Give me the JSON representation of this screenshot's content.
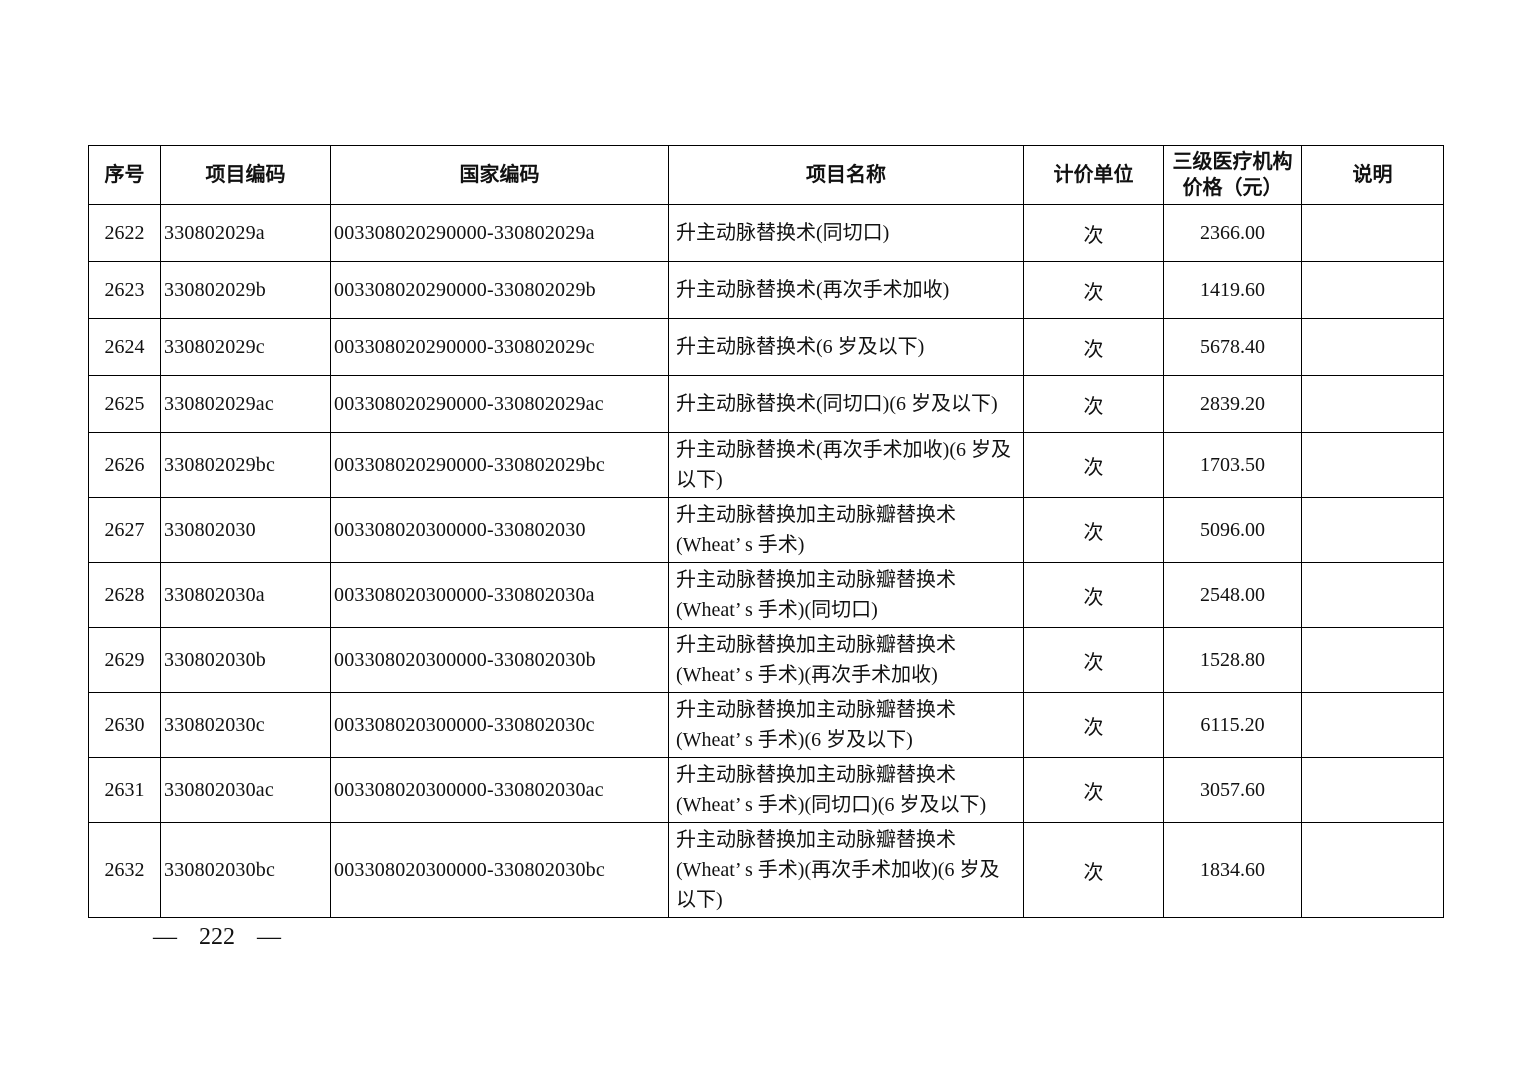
{
  "page": {
    "footer_page_number": "— 222 —"
  },
  "table": {
    "columns": [
      {
        "key": "seq",
        "label": "序号"
      },
      {
        "key": "item_code",
        "label": "项目编码"
      },
      {
        "key": "national_code",
        "label": "国家编码"
      },
      {
        "key": "item_name",
        "label": "项目名称"
      },
      {
        "key": "unit",
        "label": "计价单位"
      },
      {
        "key": "price",
        "label": "三级医疗机构\n价格（元）"
      },
      {
        "key": "note",
        "label": "说明"
      }
    ],
    "rows": [
      {
        "seq": "2622",
        "item_code": "330802029a",
        "national_code": "003308020290000-330802029a",
        "item_name": "升主动脉替换术(同切口)",
        "unit": "次",
        "price": "2366.00",
        "note": ""
      },
      {
        "seq": "2623",
        "item_code": "330802029b",
        "national_code": "003308020290000-330802029b",
        "item_name": "升主动脉替换术(再次手术加收)",
        "unit": "次",
        "price": "1419.60",
        "note": ""
      },
      {
        "seq": "2624",
        "item_code": "330802029c",
        "national_code": "003308020290000-330802029c",
        "item_name": "升主动脉替换术(6 岁及以下)",
        "unit": "次",
        "price": "5678.40",
        "note": ""
      },
      {
        "seq": "2625",
        "item_code": "330802029ac",
        "national_code": "003308020290000-330802029ac",
        "item_name": "升主动脉替换术(同切口)(6 岁及以下)",
        "unit": "次",
        "price": "2839.20",
        "note": ""
      },
      {
        "seq": "2626",
        "item_code": "330802029bc",
        "national_code": "003308020290000-330802029bc",
        "item_name": "升主动脉替换术(再次手术加收)(6 岁及\n以下)",
        "unit": "次",
        "price": "1703.50",
        "note": ""
      },
      {
        "seq": "2627",
        "item_code": "330802030",
        "national_code": "003308020300000-330802030",
        "item_name": "升主动脉替换加主动脉瓣替换术\n(Wheat’ s 手术)",
        "unit": "次",
        "price": "5096.00",
        "note": ""
      },
      {
        "seq": "2628",
        "item_code": "330802030a",
        "national_code": "003308020300000-330802030a",
        "item_name": "升主动脉替换加主动脉瓣替换术\n(Wheat’ s 手术)(同切口)",
        "unit": "次",
        "price": "2548.00",
        "note": ""
      },
      {
        "seq": "2629",
        "item_code": "330802030b",
        "national_code": "003308020300000-330802030b",
        "item_name": "升主动脉替换加主动脉瓣替换术\n(Wheat’ s 手术)(再次手术加收)",
        "unit": "次",
        "price": "1528.80",
        "note": ""
      },
      {
        "seq": "2630",
        "item_code": "330802030c",
        "national_code": "003308020300000-330802030c",
        "item_name": "升主动脉替换加主动脉瓣替换术\n(Wheat’ s 手术)(6 岁及以下)",
        "unit": "次",
        "price": "6115.20",
        "note": ""
      },
      {
        "seq": "2631",
        "item_code": "330802030ac",
        "national_code": "003308020300000-330802030ac",
        "item_name": "升主动脉替换加主动脉瓣替换术\n(Wheat’ s 手术)(同切口)(6 岁及以下)",
        "unit": "次",
        "price": "3057.60",
        "note": ""
      },
      {
        "seq": "2632",
        "item_code": "330802030bc",
        "national_code": "003308020300000-330802030bc",
        "item_name": "升主动脉替换加主动脉瓣替换术\n(Wheat’ s 手术)(再次手术加收)(6 岁及\n以下)",
        "unit": "次",
        "price": "1834.60",
        "note": ""
      }
    ]
  }
}
